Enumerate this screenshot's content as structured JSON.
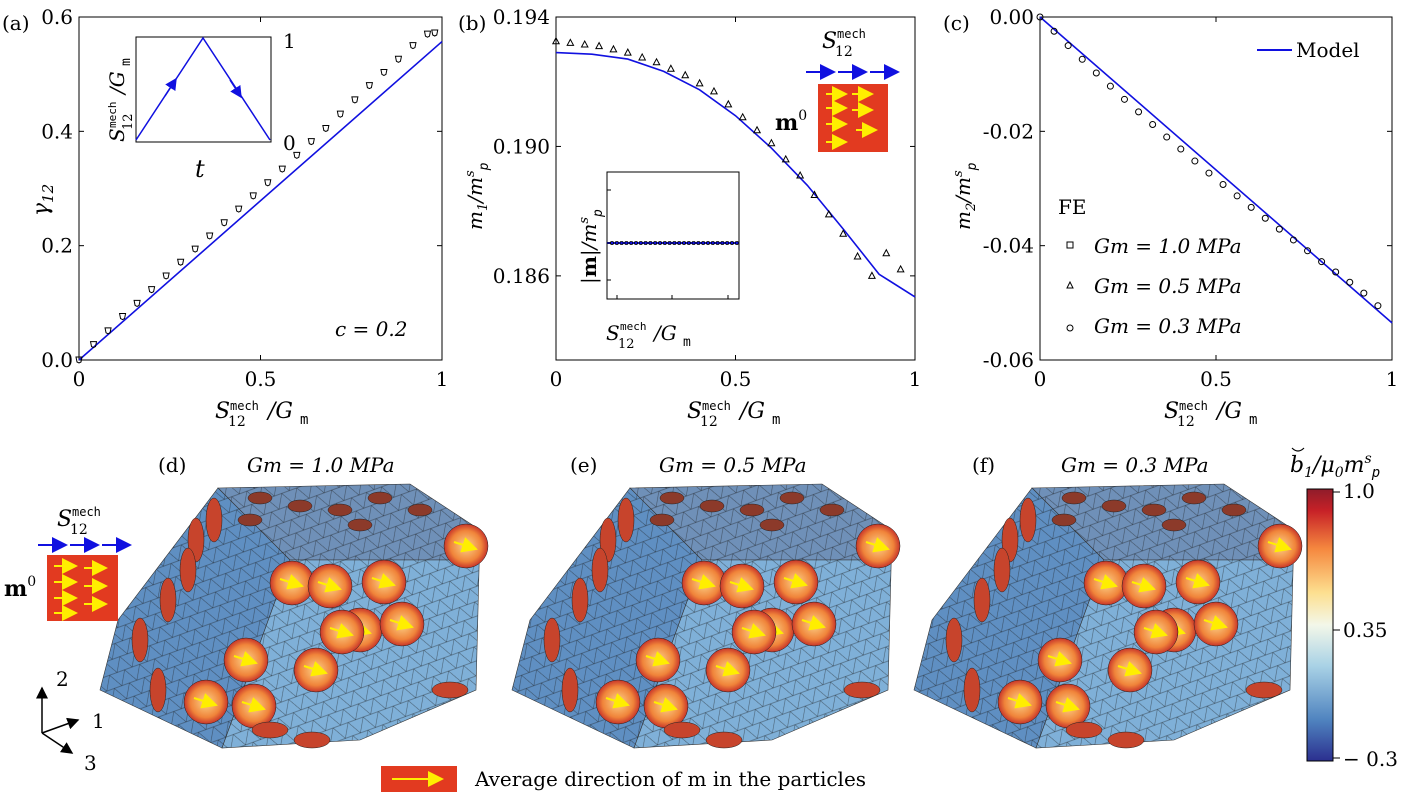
{
  "colors": {
    "model": "#1010e0",
    "marker": "#000000",
    "inset_red": "#e23a20",
    "inset_arrow": "#ffee00",
    "colorbar": [
      "#2b2f8f",
      "#4f83bf",
      "#a9d2e6",
      "#f3f7e9",
      "#fddf8f",
      "#f5883f",
      "#c72127",
      "#8f1c2a"
    ],
    "mesh_blue": "#6a9fcf",
    "particle": "#f0843a"
  },
  "chart_data": [
    {
      "panel": "(a)",
      "type": "line",
      "xlabel": "S12mech/Gm",
      "ylabel": "γ12",
      "xlim": [
        0,
        1
      ],
      "ylim": [
        0,
        0.6
      ],
      "xticks": [
        "0",
        "0.5",
        "1"
      ],
      "yticks": [
        "0.0",
        "0.2",
        "0.4",
        "0.6"
      ],
      "annotation": "c = 0.2",
      "inset": {
        "xlabel": "t",
        "ylabel": "S12mech/Gm",
        "ytick_top": "1",
        "ytick_bottom": "0"
      },
      "series": [
        {
          "kind": "model",
          "x": [
            0,
            1
          ],
          "y": [
            0,
            0.557
          ]
        },
        {
          "kind": "FE",
          "x": [
            0,
            0.04,
            0.08,
            0.12,
            0.16,
            0.2,
            0.24,
            0.28,
            0.32,
            0.36,
            0.4,
            0.44,
            0.48,
            0.52,
            0.56,
            0.6,
            0.64,
            0.68,
            0.72,
            0.76,
            0.8,
            0.84,
            0.88,
            0.92,
            0.96,
            0.98
          ],
          "y": [
            0,
            0.027,
            0.051,
            0.076,
            0.099,
            0.123,
            0.147,
            0.171,
            0.194,
            0.217,
            0.24,
            0.264,
            0.287,
            0.31,
            0.334,
            0.358,
            0.382,
            0.405,
            0.43,
            0.455,
            0.48,
            0.503,
            0.526,
            0.55,
            0.57,
            0.572
          ]
        }
      ]
    },
    {
      "panel": "(b)",
      "type": "line",
      "xlabel": "S12mech/Gm",
      "ylabel": "m1/mp^s",
      "xlim": [
        0,
        1
      ],
      "ylim": [
        0.1834,
        0.194
      ],
      "xticks": [
        "0",
        "0.5",
        "1"
      ],
      "yticks": [
        "0.186",
        "0.190",
        "0.194"
      ],
      "inset": {
        "xlabel": "S12mech/Gm",
        "ylabel": "|m|/mp^s"
      },
      "inset_label_top": "S12mech",
      "inset_label_m": "m0",
      "series": [
        {
          "kind": "model",
          "x": [
            0,
            0.1,
            0.2,
            0.3,
            0.4,
            0.5,
            0.6,
            0.7,
            0.8,
            0.9,
            1.0
          ],
          "y": [
            0.1929,
            0.19285,
            0.1927,
            0.19232,
            0.19175,
            0.19095,
            0.18995,
            0.1888,
            0.18745,
            0.18605,
            0.18535
          ]
        },
        {
          "kind": "FE",
          "x": [
            0,
            0.04,
            0.08,
            0.12,
            0.16,
            0.2,
            0.24,
            0.28,
            0.32,
            0.36,
            0.4,
            0.44,
            0.48,
            0.52,
            0.56,
            0.6,
            0.64,
            0.68,
            0.72,
            0.76,
            0.8,
            0.84,
            0.88,
            0.92,
            0.96
          ],
          "y": [
            0.19325,
            0.1932,
            0.19315,
            0.1931,
            0.193,
            0.1929,
            0.19275,
            0.1926,
            0.1924,
            0.1922,
            0.19195,
            0.1917,
            0.1913,
            0.1909,
            0.1905,
            0.1901,
            0.1896,
            0.1891,
            0.1885,
            0.1879,
            0.1873,
            0.1866,
            0.186,
            0.1867,
            0.1862
          ]
        }
      ]
    },
    {
      "panel": "(c)",
      "type": "line",
      "xlabel": "S12mech/Gm",
      "ylabel": "m2/mp^s",
      "xlim": [
        0,
        1
      ],
      "ylim": [
        -0.06,
        0
      ],
      "xticks": [
        "0",
        "0.5",
        "1"
      ],
      "yticks": [
        "0.00",
        "-0.02",
        "-0.04",
        "-0.06"
      ],
      "legend": {
        "model": "Model",
        "fe_title": "FE",
        "entries": [
          "Gm = 1.0 MPa",
          "Gm = 0.5 MPa",
          "Gm = 0.3 MPa"
        ],
        "placement": "top-right"
      },
      "series": [
        {
          "kind": "model",
          "x": [
            0,
            1
          ],
          "y": [
            0,
            -0.0535
          ]
        },
        {
          "kind": "FE",
          "x": [
            0,
            0.04,
            0.08,
            0.12,
            0.16,
            0.2,
            0.24,
            0.28,
            0.32,
            0.36,
            0.4,
            0.44,
            0.48,
            0.52,
            0.56,
            0.6,
            0.64,
            0.68,
            0.72,
            0.76,
            0.8,
            0.84,
            0.88,
            0.92,
            0.96
          ],
          "y": [
            0,
            -0.0025,
            -0.005,
            -0.0074,
            -0.0098,
            -0.0121,
            -0.0144,
            -0.0166,
            -0.0188,
            -0.021,
            -0.0231,
            -0.0252,
            -0.0273,
            -0.0293,
            -0.0313,
            -0.0333,
            -0.0352,
            -0.0371,
            -0.039,
            -0.0409,
            -0.0428,
            -0.0446,
            -0.0464,
            -0.0483,
            -0.0505
          ]
        }
      ]
    }
  ],
  "panels_bottom": [
    {
      "label": "(d)",
      "title": "Gm = 1.0 MPa"
    },
    {
      "label": "(e)",
      "title": "Gm = 0.5 MPa"
    },
    {
      "label": "(f)",
      "title": "Gm = 0.3 MPa"
    }
  ],
  "colorbar": {
    "title": "b1/μ0 mp^s",
    "ticks": [
      "1.0",
      "0.35",
      "− 0.3"
    ]
  },
  "axes_triad": {
    "a1": "1",
    "a2": "2",
    "a3": "3"
  },
  "left_inset": {
    "top": "S12mech",
    "m": "m0"
  },
  "bottom_legend": "Average direction of m in the particles"
}
